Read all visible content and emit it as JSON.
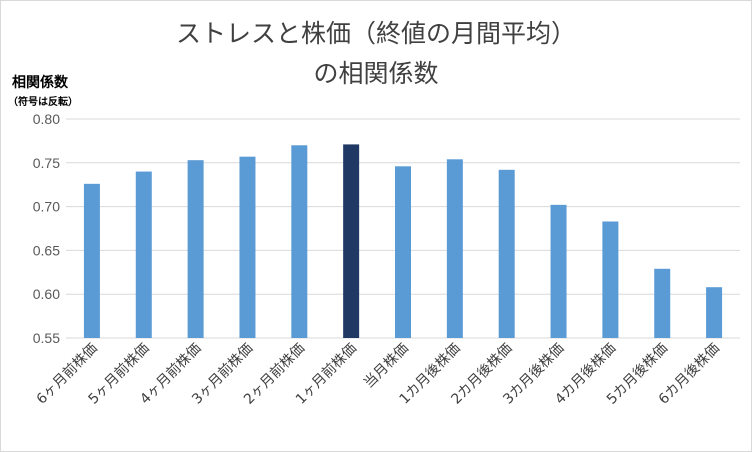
{
  "chart_data": {
    "type": "bar",
    "title_line1": "ストレスと株価（終値の月間平均）",
    "title_line2": "の相関係数",
    "ylabel": "相関係数",
    "ylabel_note": "（符号は反転）",
    "ylim": [
      0.55,
      0.8
    ],
    "yticks": [
      "0.55",
      "0.60",
      "0.65",
      "0.70",
      "0.75",
      "0.80"
    ],
    "grid": true,
    "categories": [
      "6ヶ月前株価",
      "5ヶ月前株価",
      "4ヶ月前株価",
      "3ヶ月前株価",
      "2ヶ月前株価",
      "1ヶ月前株価",
      "当月株価",
      "1カ月後株価",
      "2カ月後株価",
      "3カ月後株価",
      "4カ月後株価",
      "5カ月後株価",
      "6カ月後株価"
    ],
    "values": [
      0.726,
      0.74,
      0.753,
      0.757,
      0.77,
      0.771,
      0.746,
      0.754,
      0.742,
      0.702,
      0.683,
      0.629,
      0.608
    ],
    "colors": {
      "bar": "#5b9bd5",
      "highlight": "#203864",
      "grid": "#d9d9d9"
    },
    "highlight_index": 5
  }
}
